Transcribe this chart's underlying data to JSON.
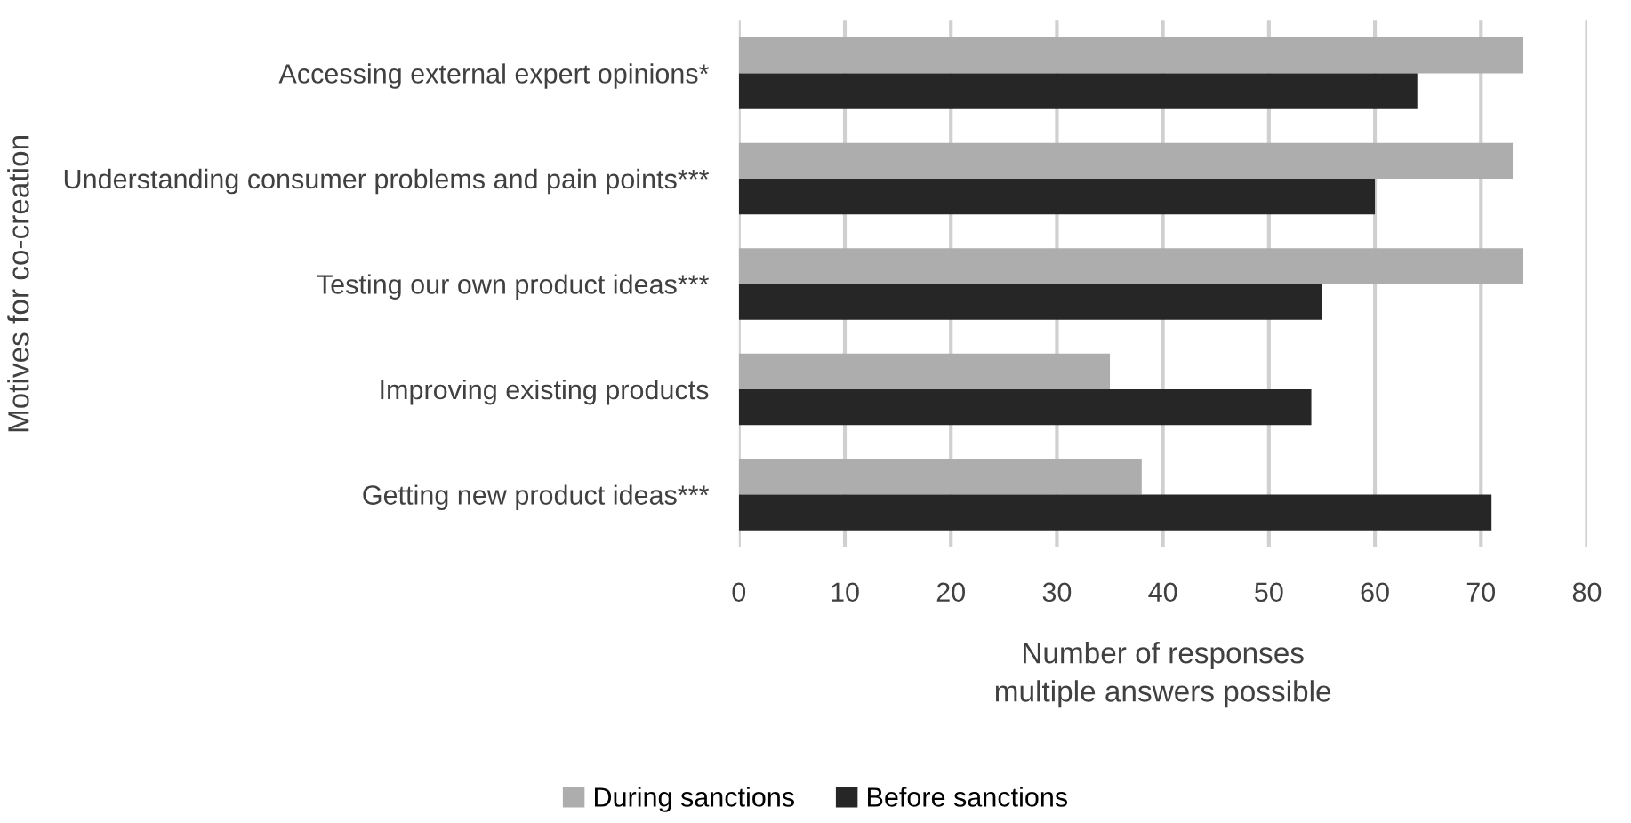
{
  "chart_data": {
    "type": "bar",
    "orientation": "horizontal",
    "categories": [
      "Accessing external expert opinions*",
      "Understanding consumer problems and pain points***",
      "Testing our own product ideas***",
      "Improving existing products",
      "Getting new product ideas***"
    ],
    "series": [
      {
        "name": "During sanctions",
        "color": "#adadad",
        "values": [
          74,
          73,
          74,
          35,
          38
        ]
      },
      {
        "name": "Before sanctions",
        "color": "#262626",
        "values": [
          64,
          60,
          55,
          54,
          71
        ]
      }
    ],
    "xlim": [
      0,
      80
    ],
    "xticks": [
      0,
      10,
      20,
      30,
      40,
      50,
      60,
      70,
      80
    ],
    "xlabel": "Number of responses\nmultiple answers possible",
    "ylabel": "Motives for co-creation",
    "grid": "x",
    "legend": "bottom"
  }
}
